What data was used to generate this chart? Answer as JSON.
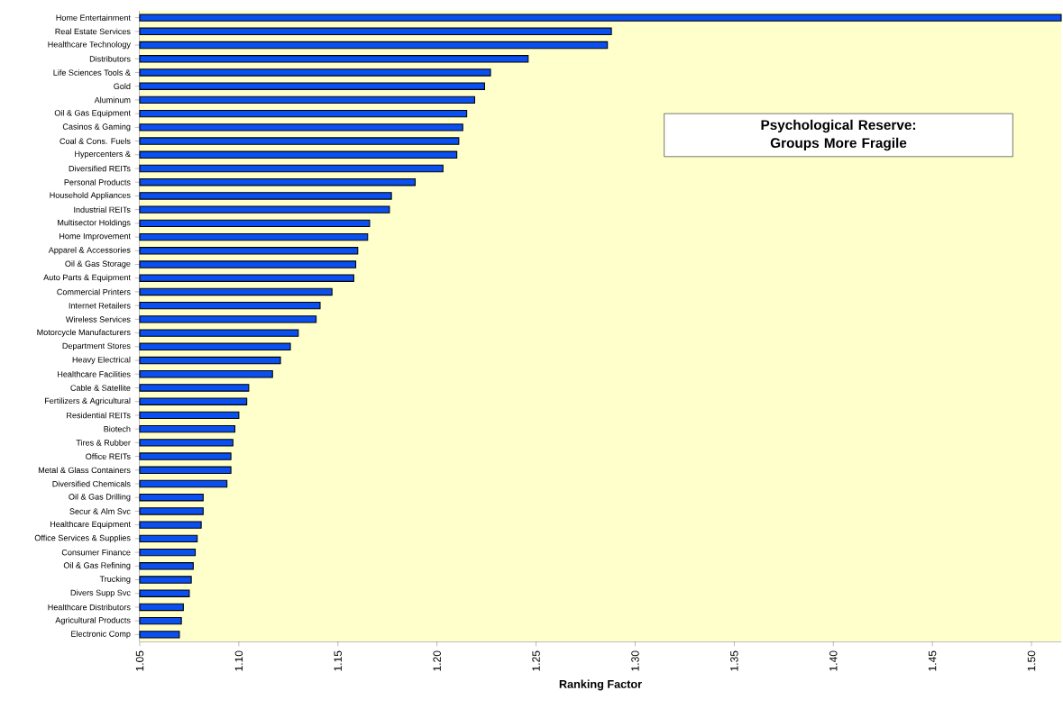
{
  "chart_data": {
    "type": "bar",
    "orientation": "horizontal",
    "title": "Psychological Reserve:",
    "subtitle": "Groups More Fragile",
    "xlabel": "Ranking Factor",
    "color": "#0a4ff0",
    "categories": [
      "Home Entertainment",
      "Real Estate Services",
      "Healthcare Technology",
      "Distributors",
      "Life Sciences Tools &",
      "Gold",
      "Aluminum",
      "Oil & Gas Equipment",
      "Casinos & Gaming",
      "Coal & Cons. Fuels",
      "Hypercenters &",
      "Diversified REITs",
      "Personal Products",
      "Household Appliances",
      "Industrial REITs",
      "Multisector Holdings",
      "Home Improvement",
      "Apparel & Accessories",
      "Oil & Gas Storage",
      "Auto Parts & Equipment",
      "Commercial Printers",
      "Internet Retailers",
      "Wireless Services",
      "Motorcycle Manufacturers",
      "Department Stores",
      "Heavy Electrical",
      "Healthcare Facilities",
      "Cable & Satellite",
      "Fertilizers & Agricultural",
      "Residential REITs",
      "Biotech",
      "Tires & Rubber",
      "Office REITs",
      "Metal & Glass Containers",
      "Diversified Chemicals",
      "Oil & Gas Drilling",
      "Secur & Alm Svc",
      "Healthcare Equipment",
      "Office Services & Supplies",
      "Consumer Finance",
      "Oil & Gas Refining",
      "Trucking",
      "Divers Supp Svc",
      "Healthcare Distributors",
      "Agricultural Products",
      "Electronic Comp"
    ],
    "values": [
      1.515,
      1.288,
      1.286,
      1.246,
      1.227,
      1.224,
      1.219,
      1.215,
      1.213,
      1.211,
      1.21,
      1.203,
      1.189,
      1.177,
      1.176,
      1.166,
      1.165,
      1.16,
      1.159,
      1.158,
      1.147,
      1.141,
      1.139,
      1.13,
      1.126,
      1.121,
      1.117,
      1.105,
      1.104,
      1.1,
      1.098,
      1.097,
      1.096,
      1.096,
      1.094,
      1.082,
      1.082,
      1.081,
      1.079,
      1.078,
      1.077,
      1.076,
      1.075,
      1.072,
      1.071,
      1.07
    ],
    "xlim": [
      1.05,
      1.515
    ],
    "xticks": [
      {
        "value": 1.05,
        "label": "1.05"
      },
      {
        "value": 1.1,
        "label": "1.10"
      },
      {
        "value": 1.15,
        "label": "1.15"
      },
      {
        "value": 1.2,
        "label": "1.20"
      },
      {
        "value": 1.25,
        "label": "1.25"
      },
      {
        "value": 1.3,
        "label": "1.30"
      },
      {
        "value": 1.35,
        "label": "1.35"
      },
      {
        "value": 1.4,
        "label": "1.40"
      },
      {
        "value": 1.45,
        "label": "1.45"
      },
      {
        "value": 1.5,
        "label": "1.50"
      }
    ]
  }
}
